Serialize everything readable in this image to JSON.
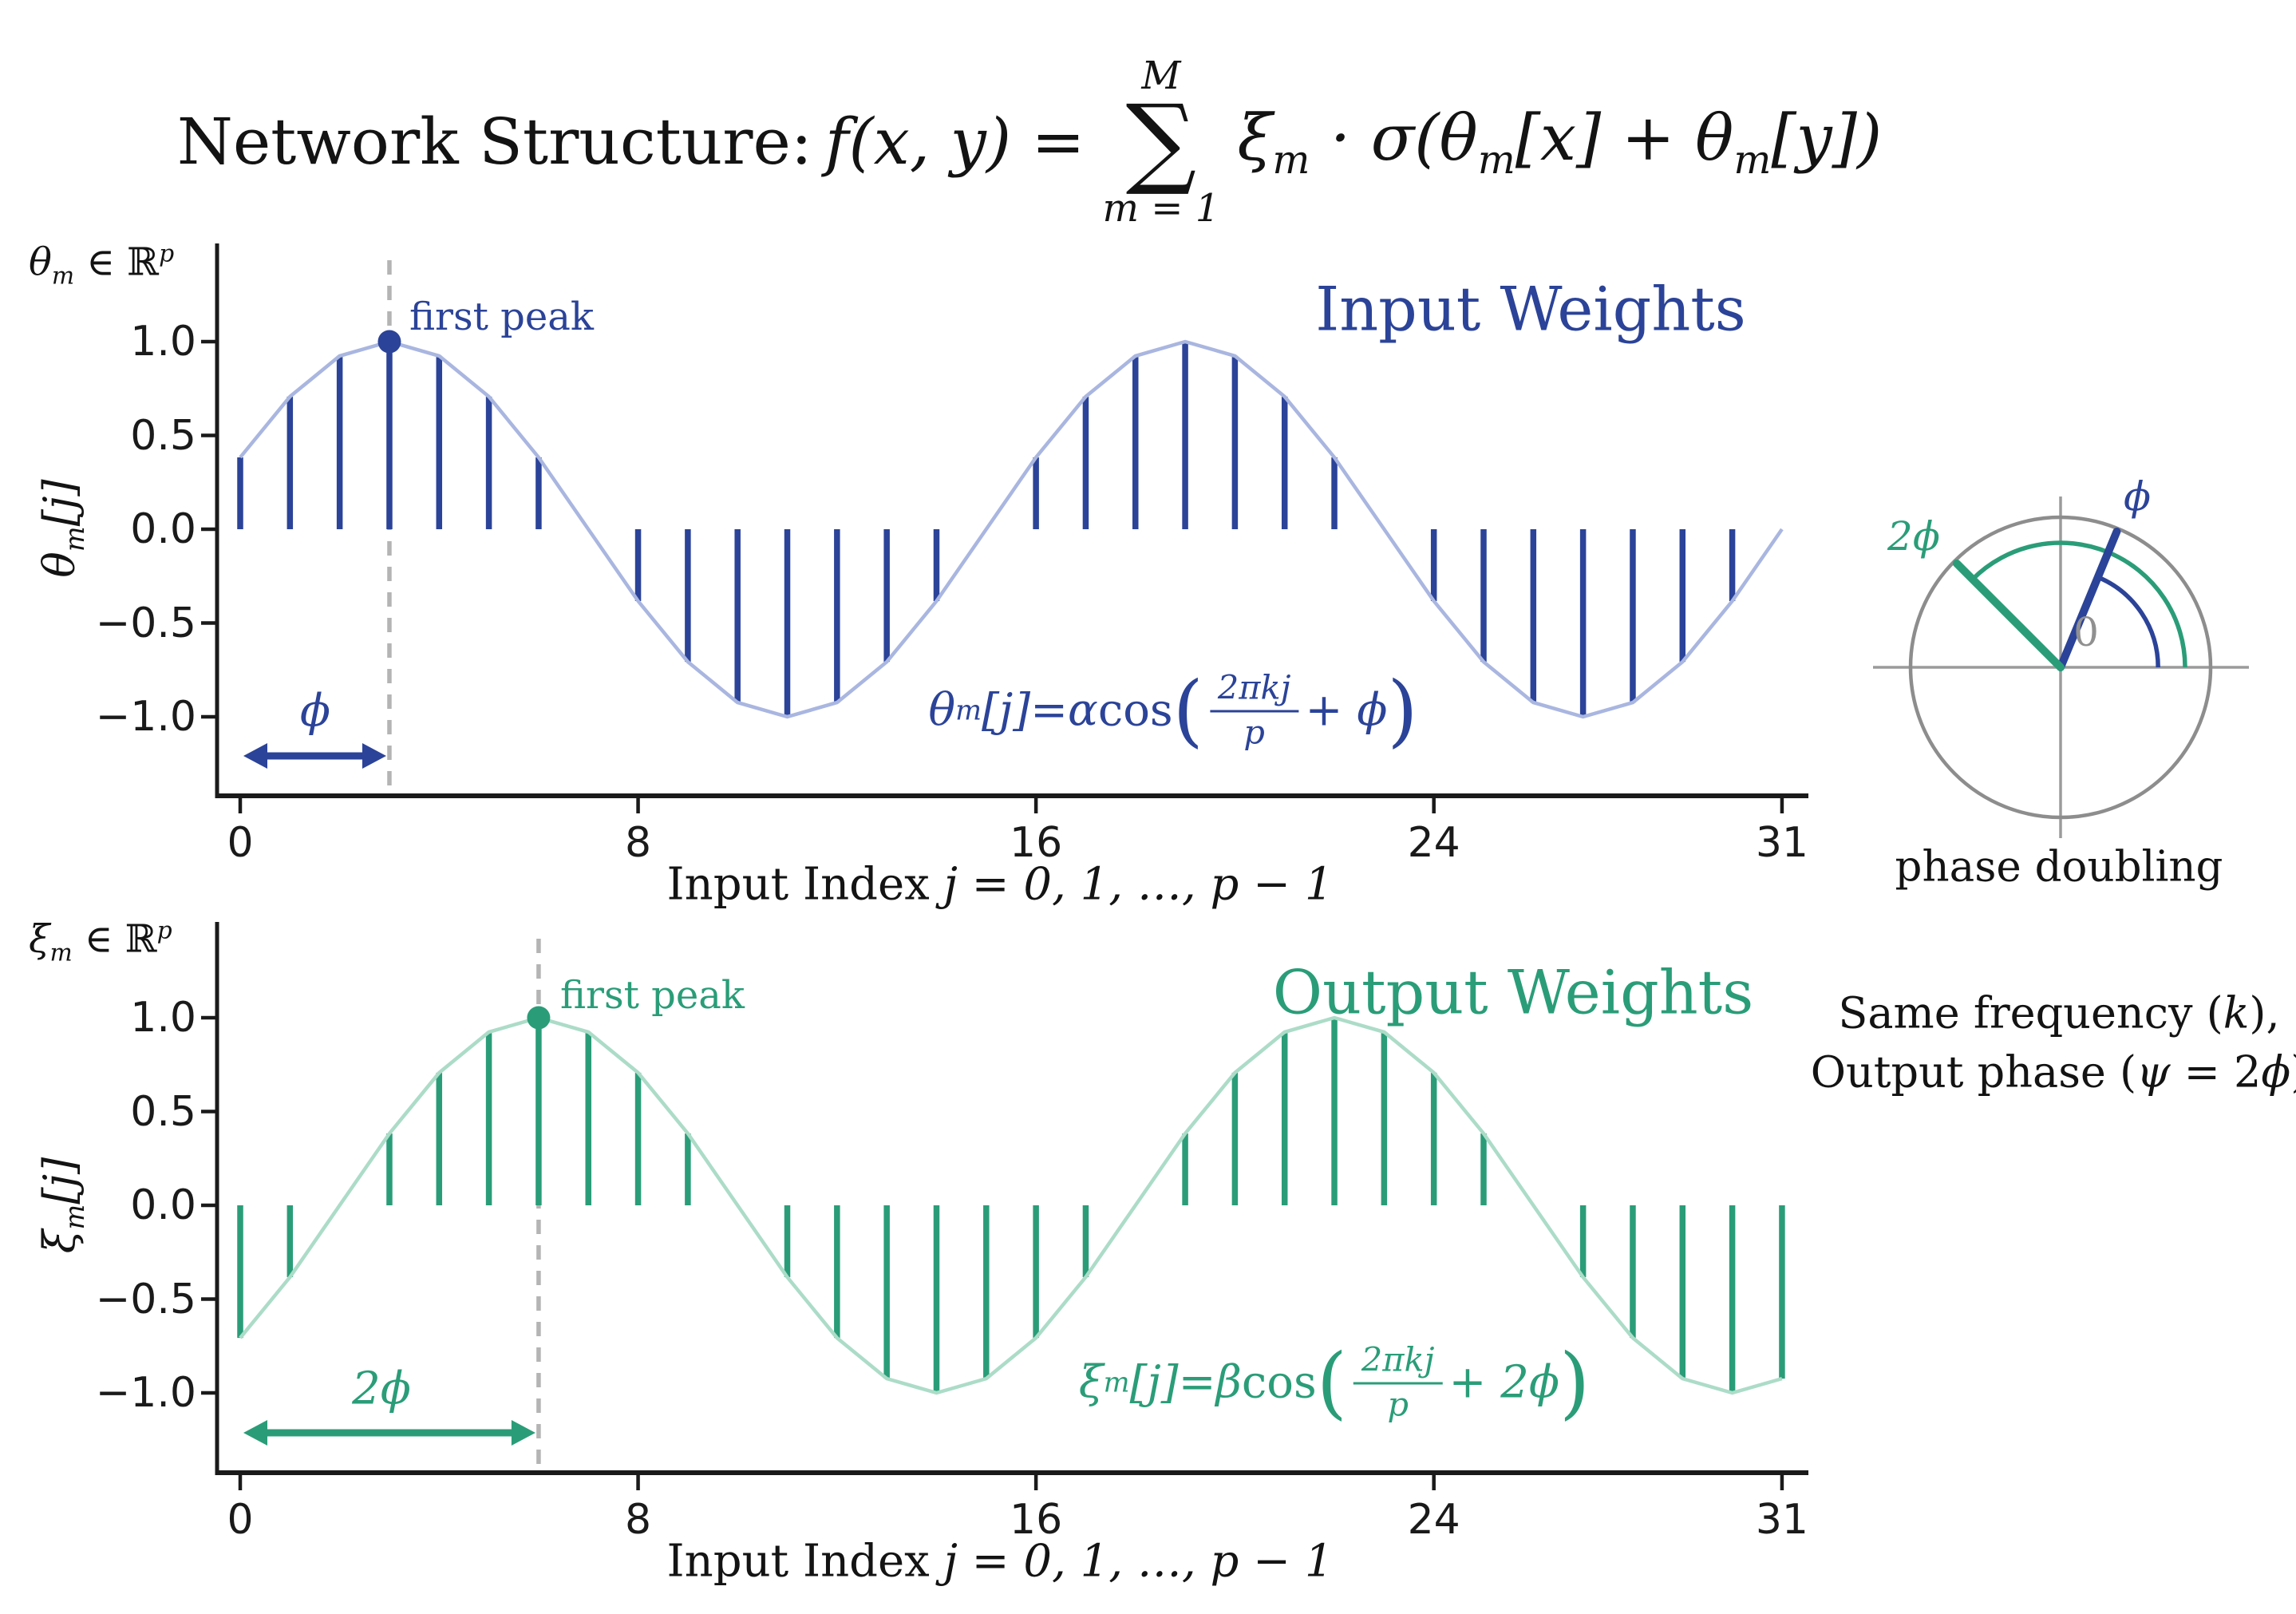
{
  "colors": {
    "navy": "#2b4398",
    "blue_light": "#a9b6e0",
    "green": "#2a9d78",
    "green_light": "#acdcc8",
    "axis": "#1a1a1a",
    "dashed": "#b4b4b4",
    "circle_gray": "#8d8d8d",
    "zero_label_gray": "#909090",
    "text": "#131313"
  },
  "title": {
    "prefix": "Network Structure:",
    "fxy": "f(x, y) =",
    "sum_upper": "M",
    "sum_sigma": "∑",
    "sum_lower": "m = 1",
    "rhs": [
      "ξ",
      "m",
      " · σ(θ",
      "m",
      "[x] + θ",
      "m",
      "[y])"
    ]
  },
  "plots": {
    "top": {
      "corner_base": "θ",
      "corner_sub": "m",
      "corner_mid": " ∈ ℝ",
      "corner_sup": "p",
      "ylabel_base": "θ",
      "ylabel_sub": "m",
      "ylabel_idx": "[j]",
      "title": "Input Weights",
      "first_peak": "first peak",
      "arrow_label": "ϕ",
      "xlabel_text": "Input Index ",
      "xlabel_math": "j = 0, 1, …, p − 1",
      "formula": {
        "lhs": "θ",
        "sub": "m",
        "idx": "[j]",
        "eq": " = ",
        "coef": "α",
        "fn": "cos",
        "open": "(",
        "num": "2πkj",
        "den": "p",
        "tail": " + ϕ",
        "close": ")"
      }
    },
    "bottom": {
      "corner_base": "ξ",
      "corner_sub": "m",
      "corner_mid": " ∈ ℝ",
      "corner_sup": "p",
      "ylabel_base": "ξ",
      "ylabel_sub": "m",
      "ylabel_idx": "[j]",
      "title": "Output Weights",
      "first_peak": "first peak",
      "arrow_label": "2ϕ",
      "xlabel_text": "Input Index ",
      "xlabel_math": "j = 0, 1, …, p − 1",
      "formula": {
        "lhs": "ξ",
        "sub": "m",
        "idx": "[j]",
        "eq": " = ",
        "coef": "β",
        "fn": "cos",
        "open": "(",
        "num": "2πkj",
        "den": "p",
        "tail": " + 2ϕ",
        "close": ")"
      }
    }
  },
  "right_panel": {
    "phi_label": "ϕ",
    "two_phi_label": "2ϕ",
    "zero_label": "0",
    "caption": "phase doubling",
    "note1_a": "Same frequency (",
    "note1_b": "k",
    "note1_c": "),",
    "note2_a": "Output phase (",
    "note2_b": "ψ",
    "note2_c": " = 2",
    "note2_d": "ϕ",
    "note2_e": ")"
  },
  "chart_data": [
    {
      "type": "stem",
      "name": "input-weights",
      "title": "Input Weights",
      "x": [
        0,
        1,
        2,
        3,
        4,
        5,
        6,
        7,
        8,
        9,
        10,
        11,
        12,
        13,
        14,
        15,
        16,
        17,
        18,
        19,
        20,
        21,
        22,
        23,
        24,
        25,
        26,
        27,
        28,
        29,
        30,
        31
      ],
      "values": [
        0.383,
        0.707,
        0.924,
        1.0,
        0.924,
        0.707,
        0.383,
        0.0,
        -0.383,
        -0.707,
        -0.924,
        -1.0,
        -0.924,
        -0.707,
        -0.383,
        0.0,
        0.383,
        0.707,
        0.924,
        1.0,
        0.924,
        0.707,
        0.383,
        0.0,
        -0.383,
        -0.707,
        -0.924,
        -1.0,
        -0.924,
        -0.707,
        -0.383,
        0.0
      ],
      "formula": "θm[j] = αcos(2πkj/p + ϕ)",
      "xlabel": "Input Index j = 0, 1, …, p − 1",
      "ylabel": "θm[j]",
      "xticks": [
        0,
        8,
        16,
        24,
        31
      ],
      "xtick_labels": [
        "0",
        "8",
        "16",
        "24",
        "31"
      ],
      "ytick_values": [
        1.0,
        0.5,
        0.0,
        -0.5,
        -1.0
      ],
      "ytick_labels": [
        "1.0",
        "0.5",
        "0.0",
        "−0.5",
        "−1.0"
      ],
      "ylim": [
        -1.43,
        1.52
      ],
      "first_peak_j": 3,
      "phase_arrow": {
        "from_j": 0,
        "to_j": 3,
        "label": "ϕ"
      },
      "stem_color": "#2b4398",
      "envelope_color": "#a9b6e0",
      "marker_color": "#2b4398"
    },
    {
      "type": "stem",
      "name": "output-weights",
      "title": "Output Weights",
      "x": [
        0,
        1,
        2,
        3,
        4,
        5,
        6,
        7,
        8,
        9,
        10,
        11,
        12,
        13,
        14,
        15,
        16,
        17,
        18,
        19,
        20,
        21,
        22,
        23,
        24,
        25,
        26,
        27,
        28,
        29,
        30,
        31
      ],
      "values": [
        -0.707,
        -0.383,
        0.0,
        0.383,
        0.707,
        0.924,
        1.0,
        0.924,
        0.707,
        0.383,
        0.0,
        -0.383,
        -0.707,
        -0.924,
        -1.0,
        -0.924,
        -0.707,
        -0.383,
        0.0,
        0.383,
        0.707,
        0.924,
        1.0,
        0.924,
        0.707,
        0.383,
        0.0,
        -0.383,
        -0.707,
        -0.924,
        -1.0,
        -0.924
      ],
      "formula": "ξm[j] = βcos(2πkj/p + 2ϕ)",
      "xlabel": "Input Index j = 0, 1, …, p − 1",
      "ylabel": "ξm[j]",
      "xticks": [
        0,
        8,
        16,
        24,
        31
      ],
      "xtick_labels": [
        "0",
        "8",
        "16",
        "24",
        "31"
      ],
      "ytick_values": [
        1.0,
        0.5,
        0.0,
        -0.5,
        -1.0
      ],
      "ytick_labels": [
        "1.0",
        "0.5",
        "0.0",
        "−0.5",
        "−1.0"
      ],
      "ylim": [
        -1.43,
        1.52
      ],
      "first_peak_j": 6,
      "phase_arrow": {
        "from_j": 0,
        "to_j": 6,
        "label": "2ϕ"
      },
      "stem_color": "#2a9d78",
      "envelope_color": "#acdcc8",
      "marker_color": "#2a9d78"
    },
    {
      "type": "phase-circle",
      "name": "phase-doubling",
      "caption": "phase doubling",
      "phi_deg": 67.5,
      "psi_deg": 135,
      "lines": [
        {
          "angle_deg": 67.5,
          "label": "ϕ",
          "color": "#2b4398"
        },
        {
          "angle_deg": 135,
          "label": "2ϕ",
          "color": "#2a9d78"
        }
      ],
      "arcs": [
        {
          "radius_frac": 0.65,
          "from_deg": 0,
          "to_deg": 67.5,
          "color": "#2b4398"
        },
        {
          "radius_frac": 0.83,
          "from_deg": 0,
          "to_deg": 135,
          "color": "#2a9d78"
        }
      ],
      "zero_label": "0"
    }
  ]
}
